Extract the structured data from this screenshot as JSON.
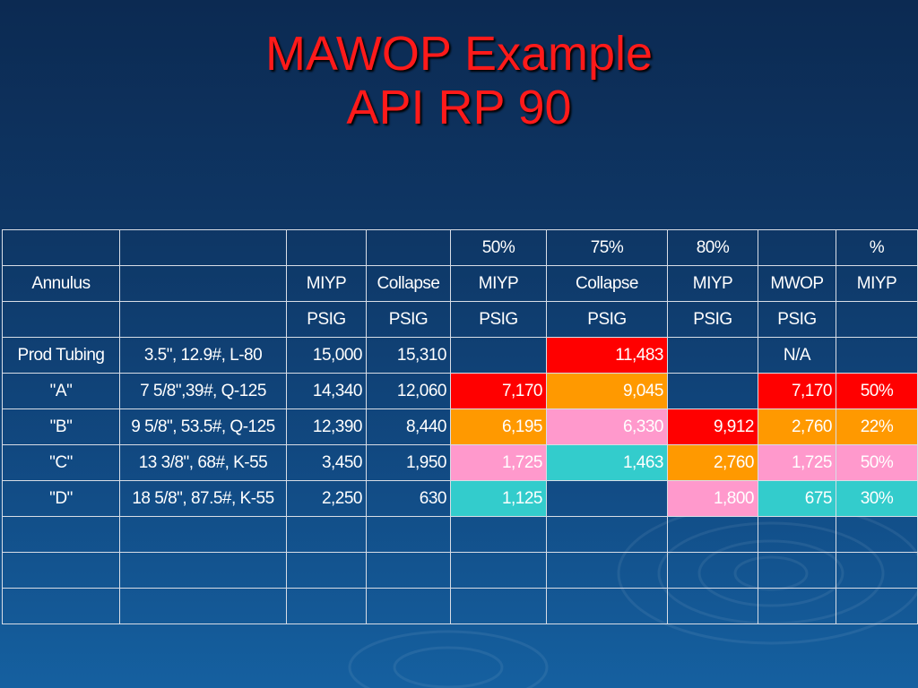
{
  "title": {
    "line1": "MAWOP Example",
    "line2": "API RP 90"
  },
  "colors": {
    "background": "#0e3766",
    "title": "#ff1a1a",
    "red": "#ff0000",
    "orange": "#ff9900",
    "pink": "#ff99cc",
    "cyan": "#33cccc"
  },
  "table": {
    "header_row1": [
      "",
      "",
      "",
      "",
      "50%",
      "75%",
      "80%",
      "",
      "%"
    ],
    "header_row2": [
      "Annulus",
      "",
      "MIYP",
      "Collapse",
      "MIYP",
      "Collapse",
      "MIYP",
      "MWOP",
      "MIYP"
    ],
    "header_row3": [
      "",
      "",
      "PSIG",
      "PSIG",
      "PSIG",
      "PSIG",
      "PSIG",
      "PSIG",
      ""
    ],
    "rows": [
      {
        "annulus": "Prod Tubing",
        "casing": "3.5\", 12.9#, L-80",
        "miyp": "15,000",
        "collapse": "15,310",
        "miyp50": "",
        "collapse75": "11,483",
        "miyp80": "",
        "mwop": "N/A",
        "pct": ""
      },
      {
        "annulus": "\"A\"",
        "casing": "7 5/8\",39#, Q-125",
        "miyp": "14,340",
        "collapse": "12,060",
        "miyp50": "7,170",
        "collapse75": "9,045",
        "miyp80": "",
        "mwop": "7,170",
        "pct": "50%"
      },
      {
        "annulus": "\"B\"",
        "casing": "9 5/8\", 53.5#, Q-125",
        "miyp": "12,390",
        "collapse": "8,440",
        "miyp50": "6,195",
        "collapse75": "6,330",
        "miyp80": "9,912",
        "mwop": "2,760",
        "pct": "22%"
      },
      {
        "annulus": "\"C\"",
        "casing": "13 3/8\", 68#, K-55",
        "miyp": "3,450",
        "collapse": "1,950",
        "miyp50": "1,725",
        "collapse75": "1,463",
        "miyp80": "2,760",
        "mwop": "1,725",
        "pct": "50%"
      },
      {
        "annulus": "\"D\"",
        "casing": "18 5/8\", 87.5#, K-55",
        "miyp": "2,250",
        "collapse": "630",
        "miyp50": "1,125",
        "collapse75": "",
        "miyp80": "1,800",
        "mwop": "675",
        "pct": "30%"
      }
    ]
  }
}
